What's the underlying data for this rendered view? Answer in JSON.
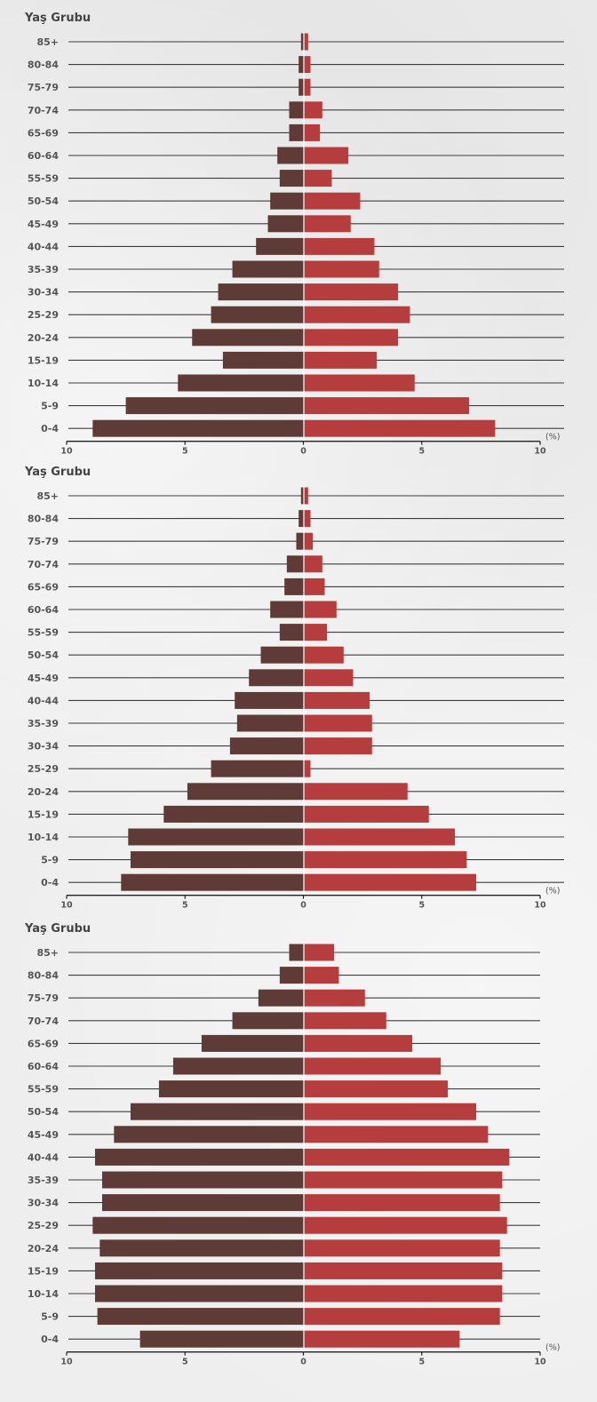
{
  "chart_data": [
    {
      "type": "bar",
      "ylabel": "Yaş Grubu",
      "xunit": "(%)",
      "categories": [
        "0-4",
        "5-9",
        "10-14",
        "15-19",
        "20-24",
        "25-29",
        "30-34",
        "35-39",
        "40-44",
        "45-49",
        "50-54",
        "55-59",
        "60-64",
        "65-69",
        "70-74",
        "75-79",
        "80-84",
        "85+"
      ],
      "series": [
        {
          "color": "#5e3b37",
          "values": [
            8.9,
            7.5,
            5.3,
            3.4,
            4.7,
            3.9,
            3.6,
            3.0,
            2.0,
            1.5,
            1.4,
            1.0,
            1.1,
            0.6,
            0.6,
            0.2,
            0.2,
            0.1
          ]
        },
        {
          "color": "#b63d3d",
          "values": [
            8.1,
            7.0,
            4.7,
            3.1,
            4.0,
            4.5,
            4.0,
            3.2,
            3.0,
            2.0,
            2.4,
            1.2,
            1.9,
            0.7,
            0.8,
            0.3,
            0.3,
            0.2
          ]
        }
      ],
      "xticks": [
        "10",
        "5",
        "0",
        "5",
        "10"
      ],
      "xlim": [
        -10,
        10
      ]
    },
    {
      "type": "bar",
      "ylabel": "Yaş Grubu",
      "xunit": "(%)",
      "categories": [
        "0-4",
        "5-9",
        "10-14",
        "15-19",
        "20-24",
        "25-29",
        "30-34",
        "35-39",
        "40-44",
        "45-49",
        "50-54",
        "55-59",
        "60-64",
        "65-69",
        "70-74",
        "75-79",
        "80-84",
        "85+"
      ],
      "series": [
        {
          "color": "#5e3b37",
          "values": [
            7.7,
            7.3,
            7.4,
            5.9,
            4.9,
            3.9,
            3.1,
            2.8,
            2.9,
            2.3,
            1.8,
            1.0,
            1.4,
            0.8,
            0.7,
            0.3,
            0.2,
            0.1
          ]
        },
        {
          "color": "#b63d3d",
          "values": [
            7.3,
            6.9,
            6.4,
            5.3,
            4.4,
            0.3,
            2.9,
            2.9,
            2.8,
            2.1,
            1.7,
            1.0,
            1.4,
            0.9,
            0.8,
            0.4,
            0.3,
            0.2
          ]
        }
      ],
      "xticks": [
        "10",
        "5",
        "0",
        "5",
        "10"
      ],
      "xlim": [
        -10,
        10
      ]
    },
    {
      "type": "bar",
      "ylabel": "Yaş Grubu",
      "xunit": "(%)",
      "categories": [
        "0-4",
        "5-9",
        "10-14",
        "15-19",
        "20-24",
        "25-29",
        "30-34",
        "35-39",
        "40-44",
        "45-49",
        "50-54",
        "55-59",
        "60-64",
        "65-69",
        "70-74",
        "75-79",
        "80-84",
        "85+"
      ],
      "series": [
        {
          "color": "#5e3b37",
          "values": [
            6.9,
            8.7,
            8.8,
            8.8,
            8.6,
            8.9,
            8.5,
            8.5,
            8.8,
            8.0,
            7.3,
            6.1,
            5.5,
            4.3,
            3.0,
            1.9,
            1.0,
            0.6
          ]
        },
        {
          "color": "#b63d3d",
          "values": [
            6.6,
            8.3,
            8.4,
            8.4,
            8.3,
            8.6,
            8.3,
            8.4,
            8.7,
            7.8,
            7.3,
            6.1,
            5.8,
            4.6,
            3.5,
            2.6,
            1.5,
            1.3
          ]
        }
      ],
      "xticks": [
        "10",
        "5",
        "0",
        "5",
        "10"
      ],
      "xlim": [
        -10,
        10
      ]
    }
  ]
}
